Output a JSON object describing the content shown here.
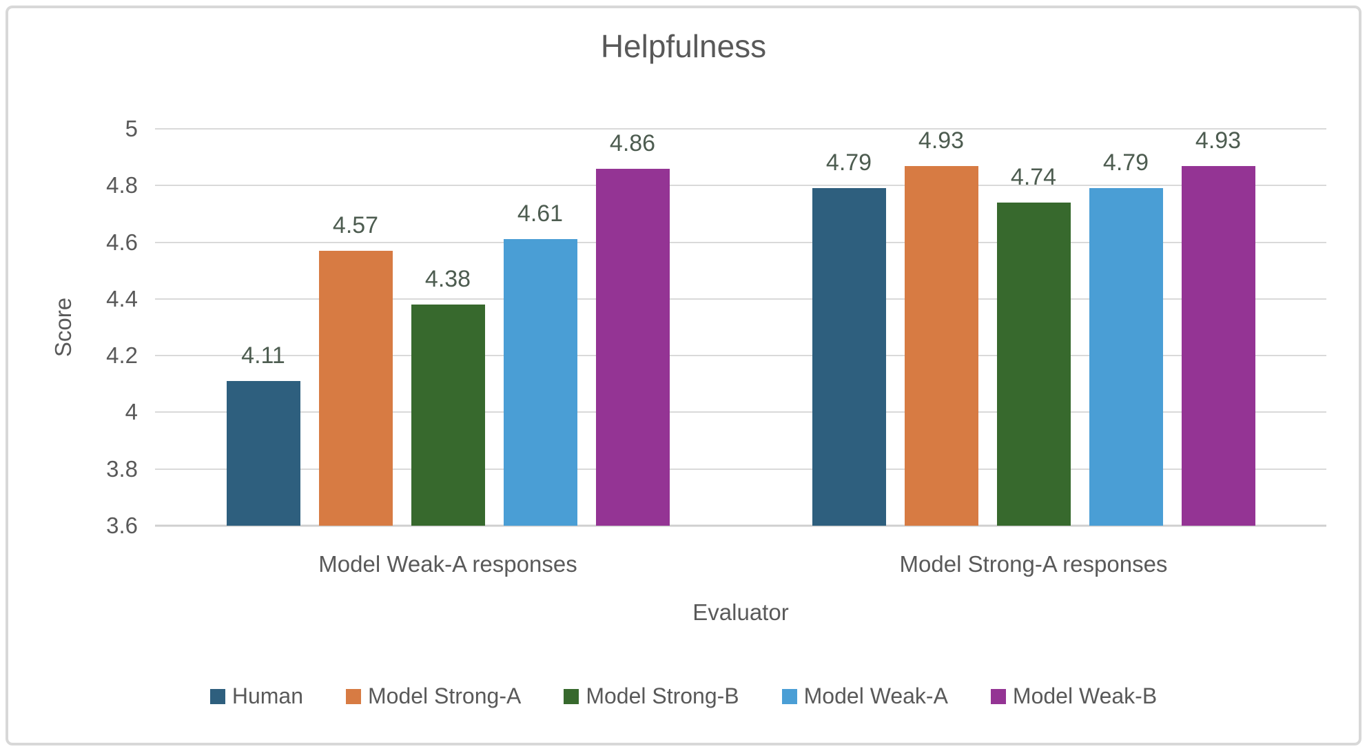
{
  "chart_data": {
    "type": "bar",
    "title": "Helpfulness",
    "xlabel": "Evaluator",
    "ylabel": "Score",
    "ylim": [
      3.6,
      5
    ],
    "yticks": [
      {
        "value": 3.6,
        "label": "3.6"
      },
      {
        "value": 3.8,
        "label": "3.8"
      },
      {
        "value": 4,
        "label": "4"
      },
      {
        "value": 4.2,
        "label": "4.2"
      },
      {
        "value": 4.4,
        "label": "4.4"
      },
      {
        "value": 4.6,
        "label": "4.6"
      },
      {
        "value": 4.8,
        "label": "4.8"
      },
      {
        "value": 5,
        "label": "5"
      }
    ],
    "grid": true,
    "legend_position": "bottom",
    "categories": [
      "Model Weak-A responses",
      "Model Strong-A responses"
    ],
    "series": [
      {
        "name": "Human",
        "color": "#2E5F7E",
        "values": [
          4.11,
          4.79
        ],
        "labels": [
          "4.11",
          "4.79"
        ]
      },
      {
        "name": "Model Strong-A",
        "color": "#D77B43",
        "values": [
          4.57,
          4.93
        ],
        "labels": [
          "4.57",
          "4.93"
        ]
      },
      {
        "name": "Model Strong-B",
        "color": "#37692D",
        "values": [
          4.38,
          4.74
        ],
        "labels": [
          "4.38",
          "4.74"
        ]
      },
      {
        "name": "Model Weak-A",
        "color": "#4A9ED5",
        "values": [
          4.61,
          4.79
        ],
        "labels": [
          "4.61",
          "4.79"
        ]
      },
      {
        "name": "Model Weak-B",
        "color": "#943494",
        "values": [
          4.86,
          4.93
        ],
        "labels": [
          "4.86",
          "4.93"
        ]
      }
    ],
    "colors": {
      "data_label": "#4D5C50",
      "axis_text": "#595959",
      "gridline": "#D9D9D9",
      "baseline": "#CFCFCF",
      "frame_border": "#D8D8D8",
      "background": "#FFFFFF"
    }
  }
}
